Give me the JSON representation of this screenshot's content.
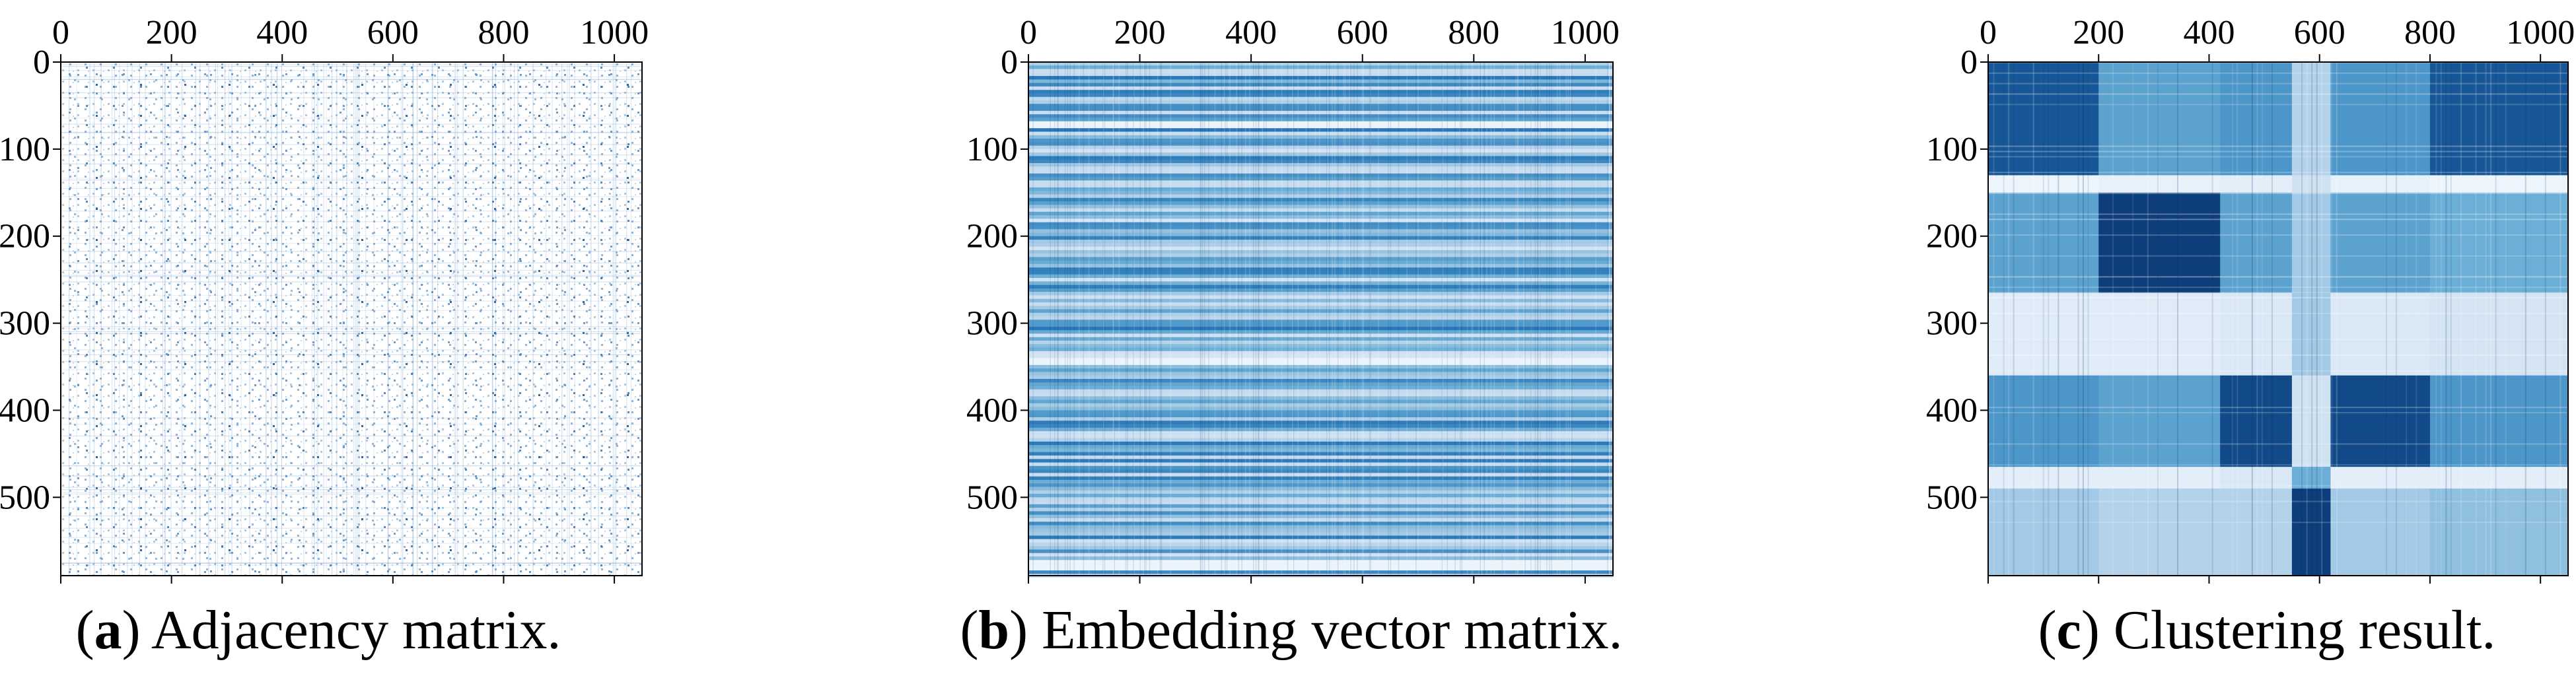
{
  "chart_data": [
    {
      "type": "heatmap",
      "panel": "a",
      "caption_letter": "a",
      "caption_text": " Adjacency matrix.",
      "caption_open": "(",
      "caption_close": ")",
      "rows": 590,
      "cols": 1050,
      "xlim": [
        0,
        1050
      ],
      "ylim": [
        0,
        590
      ],
      "x_ticks": [
        0,
        200,
        400,
        600,
        800,
        1000
      ],
      "y_ticks": [
        0,
        100,
        200,
        300,
        400,
        500
      ],
      "x_tick_labels": [
        "0",
        "200",
        "400",
        "600",
        "800",
        "1000"
      ],
      "y_tick_labels": [
        "0",
        "100",
        "200",
        "300",
        "400",
        "500"
      ],
      "colormap": "Blues",
      "pattern": "sparse binary adjacency entries (scattered dots on white)",
      "density": 0.06
    },
    {
      "type": "heatmap",
      "panel": "b",
      "caption_letter": "b",
      "caption_text": " Embedding vector matrix.",
      "caption_open": "(",
      "caption_close": ")",
      "rows": 590,
      "cols": 1050,
      "xlim": [
        0,
        1050
      ],
      "ylim": [
        0,
        590
      ],
      "x_ticks": [
        0,
        200,
        400,
        600,
        800,
        1000
      ],
      "y_ticks": [
        0,
        100,
        200,
        300,
        400,
        500
      ],
      "x_tick_labels": [
        "0",
        "200",
        "400",
        "600",
        "800",
        "1000"
      ],
      "y_tick_labels": [
        "0",
        "100",
        "200",
        "300",
        "400",
        "500"
      ],
      "colormap": "Blues",
      "pattern": "dense embedding values with horizontal row striping; pale bands near rows 70, 340, 575",
      "pale_rows": [
        70,
        340,
        575
      ]
    },
    {
      "type": "heatmap",
      "panel": "c",
      "caption_letter": "c",
      "caption_text": " Clustering result.",
      "caption_open": "(",
      "caption_close": ")",
      "rows": 590,
      "cols": 1050,
      "xlim": [
        0,
        1050
      ],
      "ylim": [
        0,
        590
      ],
      "x_ticks": [
        0,
        200,
        400,
        600,
        800,
        1000
      ],
      "y_ticks": [
        0,
        100,
        200,
        300,
        400,
        500
      ],
      "x_tick_labels": [
        "0",
        "200",
        "400",
        "600",
        "800",
        "1000"
      ],
      "y_tick_labels": [
        "0",
        "100",
        "200",
        "300",
        "400",
        "500"
      ],
      "colormap": "Blues",
      "row_groups": [
        {
          "start": 0,
          "end": 130,
          "strength": [
            0.85,
            0.55,
            0.6,
            0.3,
            0.6,
            0.85
          ]
        },
        {
          "start": 130,
          "end": 150,
          "strength": [
            0.05,
            0.08,
            0.1,
            0.2,
            0.08,
            0.05
          ]
        },
        {
          "start": 150,
          "end": 265,
          "strength": [
            0.55,
            0.95,
            0.55,
            0.35,
            0.55,
            0.5
          ]
        },
        {
          "start": 265,
          "end": 360,
          "strength": [
            0.12,
            0.12,
            0.15,
            0.35,
            0.15,
            0.18
          ]
        },
        {
          "start": 360,
          "end": 465,
          "strength": [
            0.6,
            0.55,
            0.9,
            0.2,
            0.9,
            0.6
          ]
        },
        {
          "start": 465,
          "end": 490,
          "strength": [
            0.1,
            0.1,
            0.15,
            0.5,
            0.1,
            0.1
          ]
        },
        {
          "start": 490,
          "end": 590,
          "strength": [
            0.35,
            0.3,
            0.3,
            0.95,
            0.35,
            0.4
          ]
        }
      ],
      "col_groups": [
        {
          "start": 0,
          "end": 200
        },
        {
          "start": 200,
          "end": 420
        },
        {
          "start": 420,
          "end": 550
        },
        {
          "start": 550,
          "end": 620
        },
        {
          "start": 620,
          "end": 800
        },
        {
          "start": 800,
          "end": 1050
        }
      ]
    }
  ]
}
